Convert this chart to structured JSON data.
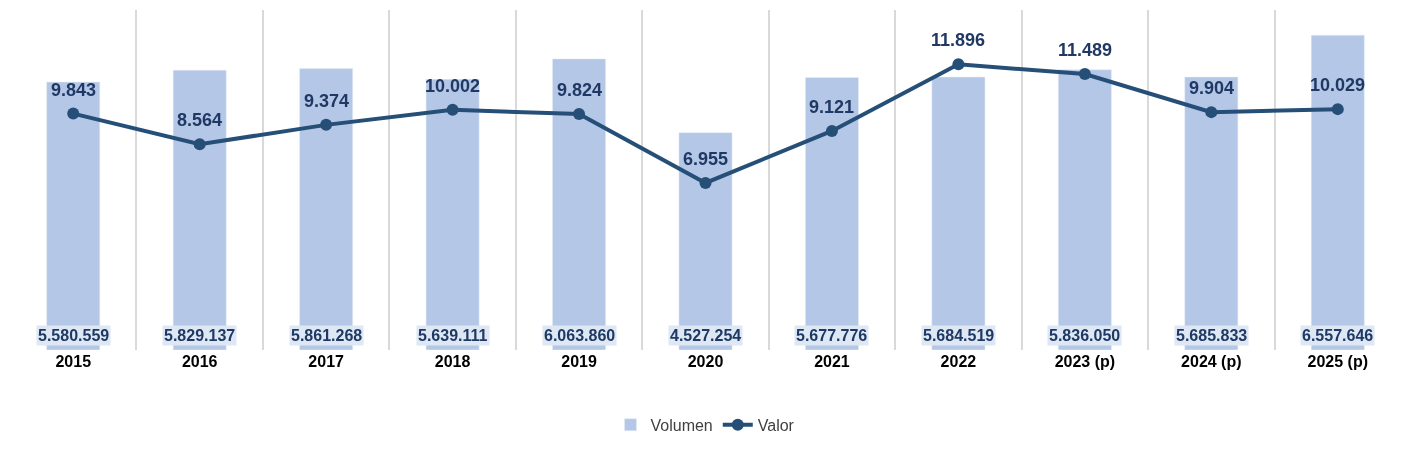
{
  "chart_data": {
    "type": "bar",
    "categories": [
      "2015",
      "2016",
      "2017",
      "2018",
      "2019",
      "2020",
      "2021",
      "2022",
      "2023 (p)",
      "2024 (p)",
      "2025 (p)"
    ],
    "series": [
      {
        "name": "Volumen",
        "color": "#b4c7e7",
        "values": [
          5580559,
          5829137,
          5861268,
          5639111,
          6063860,
          4527254,
          5677776,
          5684519,
          5836050,
          5685833,
          6557646
        ],
        "value_labels": [
          "5.580.559",
          "5.829.137",
          "5.861.268",
          "5.639.111",
          "6.063.860",
          "4.527.254",
          "5.677.776",
          "5.684.519",
          "5.836.050",
          "5.685.833",
          "6.557.646"
        ]
      },
      {
        "name": "Valor",
        "type": "line",
        "axis": "y2",
        "color": "#264f78",
        "values": [
          9843,
          8564,
          9374,
          10002,
          9824,
          6955,
          9121,
          11896,
          11489,
          9904,
          10029
        ],
        "value_labels": [
          "9.843",
          "8.564",
          "9.374",
          "10.002",
          "9.824",
          "6.955",
          "9.121",
          "11.896",
          "11.489",
          "9.904",
          "10.029"
        ]
      }
    ],
    "tick_labels": "x",
    "grid": "x",
    "legend": "bottom",
    "marker": "circle",
    "line_style": "solid"
  }
}
